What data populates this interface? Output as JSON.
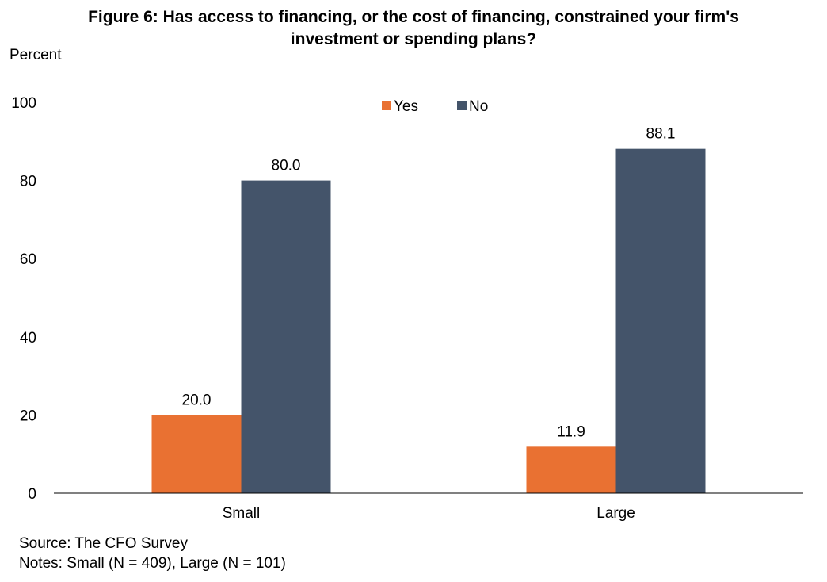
{
  "chart_data": {
    "type": "bar",
    "title": "Figure 6: Has access to financing, or the cost of financing, constrained your firm's investment or spending plans?",
    "title_lines": [
      "Figure 6: Has access to financing, or the cost of financing, constrained your firm's",
      "investment or spending plans?"
    ],
    "xlabel": "",
    "ylabel": "Percent",
    "ylim": [
      0,
      100
    ],
    "yticks": [
      0,
      20,
      40,
      60,
      80,
      100
    ],
    "categories": [
      "Small",
      "Large"
    ],
    "series": [
      {
        "name": "Yes",
        "color": "#E97132",
        "values": [
          20.0,
          11.9
        ],
        "labels": [
          "20.0",
          "11.9"
        ]
      },
      {
        "name": "No",
        "color": "#44546A",
        "values": [
          80.0,
          88.1
        ],
        "labels": [
          "80.0",
          "88.1"
        ]
      }
    ],
    "legend": "top-center",
    "grid": false
  },
  "footnotes": {
    "source": "Source: The CFO Survey",
    "notes": "Notes: Small (N = 409), Large (N = 101)"
  }
}
